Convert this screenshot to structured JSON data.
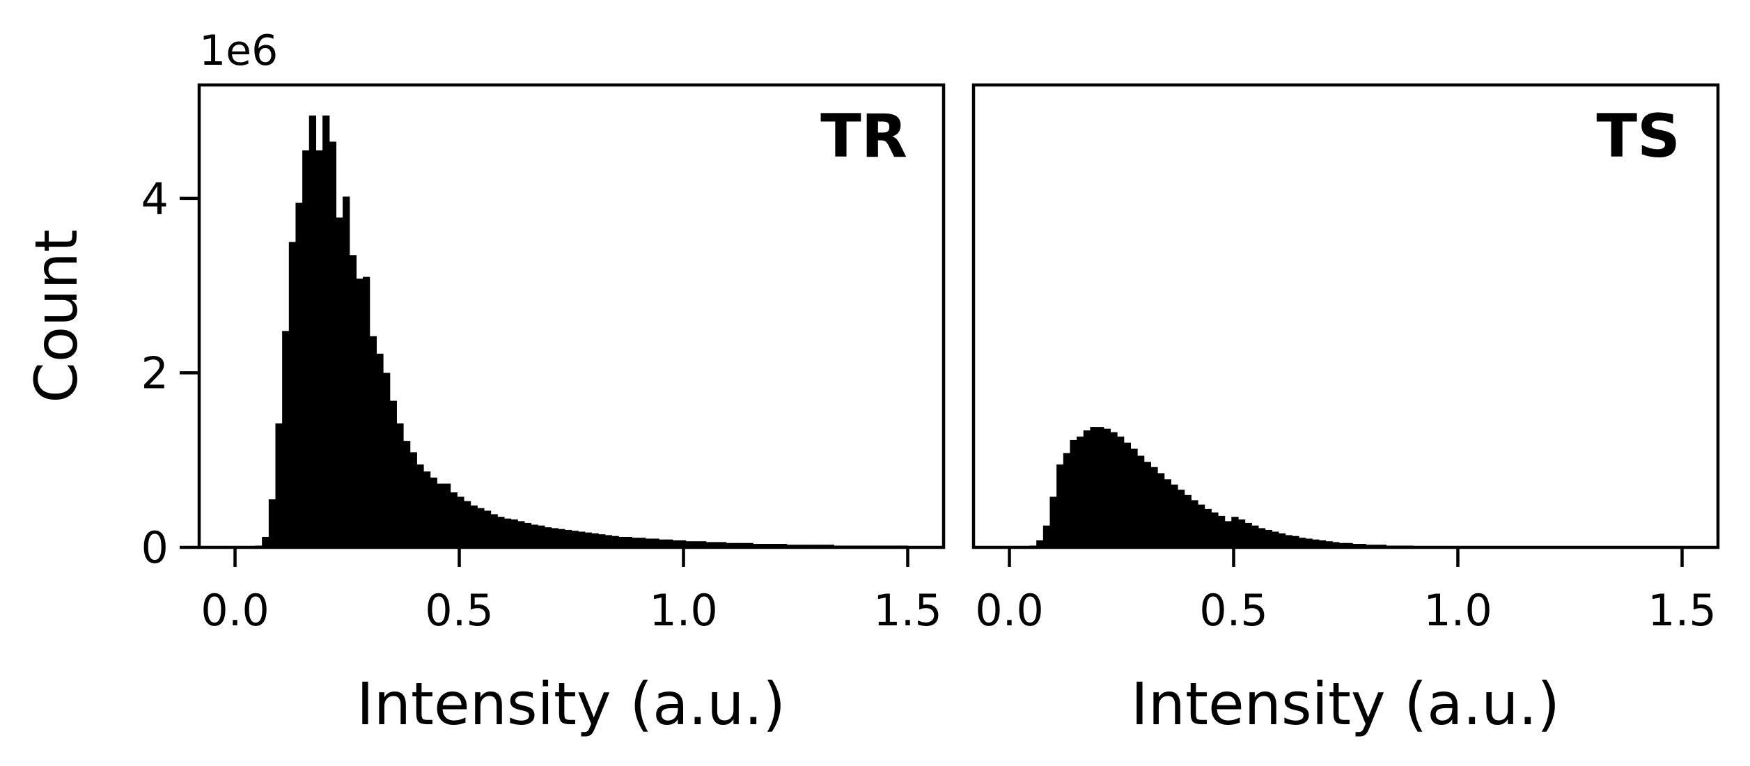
{
  "chart_data": [
    {
      "type": "bar",
      "panel_label": "TR",
      "xlabel": "Intensity (a.u.)",
      "ylabel": "Count",
      "y_offset_label": "1e6",
      "xlim": [
        -0.08,
        1.58
      ],
      "ylim": [
        0,
        5.3
      ],
      "xticks": [
        0.0,
        0.5,
        1.0,
        1.5
      ],
      "xtick_labels": [
        "0.0",
        "0.5",
        "1.0",
        "1.5"
      ],
      "yticks": [
        0,
        2,
        4
      ],
      "ytick_labels": [
        "0",
        "2",
        "4"
      ],
      "bin_start": 0.0,
      "bin_width": 0.015,
      "counts_1e6": [
        0,
        0,
        0,
        0.02,
        0.12,
        0.55,
        1.42,
        2.48,
        3.5,
        3.95,
        4.55,
        4.95,
        4.55,
        4.95,
        4.65,
        3.78,
        4.02,
        3.35,
        3.08,
        3.1,
        2.42,
        2.22,
        2.0,
        1.68,
        1.42,
        1.22,
        1.09,
        0.95,
        0.87,
        0.8,
        0.73,
        0.73,
        0.63,
        0.58,
        0.53,
        0.48,
        0.45,
        0.42,
        0.38,
        0.35,
        0.33,
        0.32,
        0.3,
        0.28,
        0.26,
        0.25,
        0.23,
        0.22,
        0.21,
        0.2,
        0.19,
        0.18,
        0.17,
        0.16,
        0.15,
        0.14,
        0.13,
        0.12,
        0.12,
        0.11,
        0.11,
        0.1,
        0.1,
        0.09,
        0.09,
        0.08,
        0.08,
        0.07,
        0.07,
        0.07,
        0.06,
        0.06,
        0.06,
        0.05,
        0.05,
        0.05,
        0.05,
        0.04,
        0.04,
        0.04,
        0.04,
        0.04,
        0.03,
        0.03,
        0.03,
        0.03,
        0.03,
        0.03,
        0.03,
        0.02,
        0.02,
        0.02,
        0.02,
        0.02,
        0.02,
        0.02,
        0.02,
        0.02,
        0.02,
        0.02
      ]
    },
    {
      "type": "bar",
      "panel_label": "TS",
      "xlabel": "Intensity (a.u.)",
      "ylabel": "",
      "xlim": [
        -0.08,
        1.58
      ],
      "ylim": [
        0,
        5.3
      ],
      "xticks": [
        0.0,
        0.5,
        1.0,
        1.5
      ],
      "xtick_labels": [
        "0.0",
        "0.5",
        "1.0",
        "1.5"
      ],
      "bin_start": 0.0,
      "bin_width": 0.015,
      "counts_1e6": [
        0,
        0,
        0,
        0.02,
        0.08,
        0.25,
        0.58,
        0.95,
        1.08,
        1.23,
        1.27,
        1.34,
        1.38,
        1.38,
        1.36,
        1.32,
        1.27,
        1.2,
        1.13,
        1.05,
        0.98,
        0.92,
        0.85,
        0.78,
        0.72,
        0.66,
        0.6,
        0.54,
        0.49,
        0.44,
        0.4,
        0.36,
        0.3,
        0.35,
        0.32,
        0.28,
        0.25,
        0.22,
        0.2,
        0.18,
        0.16,
        0.14,
        0.13,
        0.11,
        0.1,
        0.09,
        0.08,
        0.07,
        0.06,
        0.05,
        0.05,
        0.04,
        0.04,
        0.03,
        0.03,
        0.03,
        0.02,
        0.02,
        0.02,
        0.02,
        0.01,
        0.01,
        0.01,
        0.01,
        0.01,
        0.01,
        0.01,
        0.01,
        0.01,
        0.01,
        0.01,
        0.01,
        0.01,
        0.01,
        0.01,
        0.01,
        0.01,
        0.01,
        0.01,
        0.01,
        0.01,
        0.01,
        0.01,
        0.01,
        0.01,
        0.01,
        0.01,
        0.01,
        0.01,
        0.01,
        0.01,
        0.01,
        0.01,
        0.01,
        0.01,
        0.01,
        0.01,
        0.01,
        0.01,
        0.01
      ]
    }
  ]
}
